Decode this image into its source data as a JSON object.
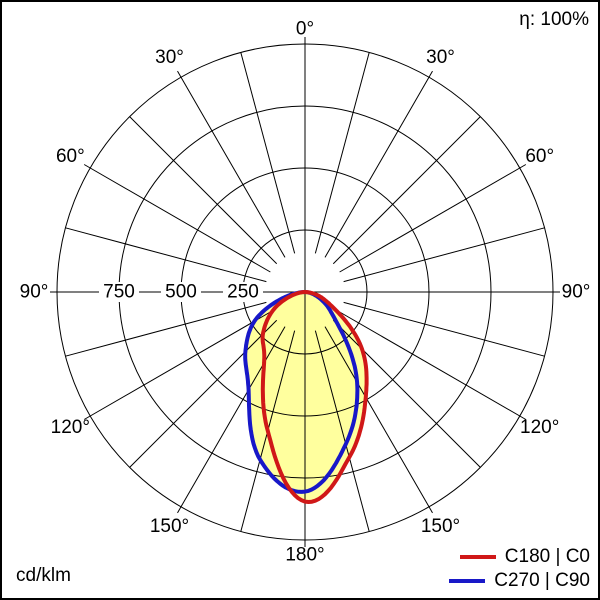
{
  "header": {
    "efficiency": "η: 100%"
  },
  "footer": {
    "unit": "cd/klm"
  },
  "chart_data": {
    "type": "polar",
    "subtype": "luminous-intensity-distribution",
    "unit": "cd/klm",
    "efficiency": "η: 100%",
    "radial_max": 1000,
    "radial_ticks": [
      {
        "value": 750,
        "label": "750"
      },
      {
        "value": 500,
        "label": "500"
      },
      {
        "value": 250,
        "label": "250"
      }
    ],
    "gamma_grid_step_deg": 15,
    "angle_label_step_deg": 30,
    "angle_labels": [
      "0°",
      "30°",
      "60°",
      "90°",
      "120°",
      "150°",
      "180°"
    ],
    "grid_color": "#000000",
    "fill_color": "#ffff9e",
    "legend_position": "bottom-right",
    "series": [
      {
        "name": "C180 | C0",
        "color": "#d01818",
        "left_plane": "C180",
        "right_plane": "C0",
        "gamma_deg": [
          0,
          15,
          30,
          45,
          60,
          75,
          90
        ],
        "left_values_cd_klm": [
          845,
          580,
          330,
          240,
          150,
          55,
          0
        ],
        "right_values_cd_klm": [
          845,
          690,
          490,
          325,
          140,
          55,
          0
        ]
      },
      {
        "name": "C270 | C90",
        "color": "#1818c8",
        "left_plane": "C270",
        "right_plane": "C90",
        "gamma_deg": [
          0,
          15,
          30,
          45,
          60,
          75,
          90
        ],
        "left_values_cd_klm": [
          805,
          700,
          455,
          340,
          235,
          90,
          0
        ],
        "right_values_cd_klm": [
          805,
          635,
          420,
          190,
          95,
          35,
          0
        ]
      }
    ]
  }
}
